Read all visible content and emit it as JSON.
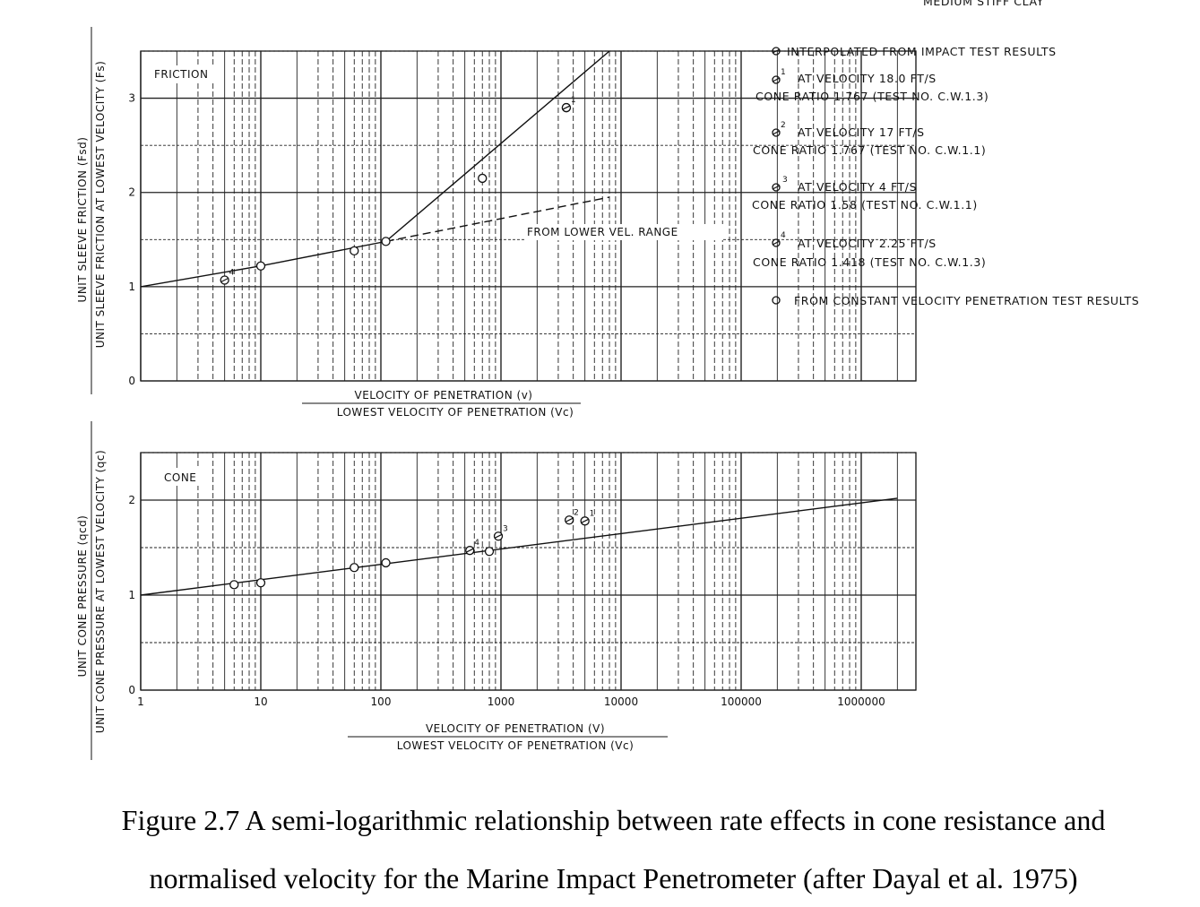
{
  "header_fragment": "MEDIUM STIFF CLAY",
  "chart_data": [
    {
      "type": "line",
      "panel": "friction",
      "panel_label": "FRICTION",
      "x_scale": "log",
      "xlim": [
        1,
        3000000
      ],
      "ylim": [
        0,
        3.5
      ],
      "y_ticks": [
        "0",
        "1",
        "2",
        "3"
      ],
      "ylabel_top": "UNIT SLEEVE FRICTION (Fsd)",
      "ylabel_bottom": "UNIT SLEEVE FRICTION AT LOWEST VELOCITY (Fs)",
      "xlabel_top": "VELOCITY OF PENETRATION (v)",
      "xlabel_bottom": "LOWEST VELOCITY OF PENETRATION (Vc)",
      "series": [
        {
          "style": "solid",
          "x": [
            1,
            10,
            110,
            8000
          ],
          "y": [
            1.0,
            1.22,
            1.48,
            3.5
          ]
        },
        {
          "style": "dashed",
          "x": [
            110,
            8000
          ],
          "y": [
            1.48,
            1.95
          ]
        }
      ],
      "points_constant_velocity": {
        "x": [
          10,
          60,
          110,
          700,
          3500
        ],
        "y": [
          1.22,
          1.38,
          1.48,
          2.15,
          2.9
        ]
      },
      "points_interpolated": [
        {
          "label": "4",
          "x": 5,
          "y": 1.07
        },
        {
          "label": "1",
          "x": 3500,
          "y": 2.9
        }
      ],
      "annotation": "FROM LOWER VEL. RANGE"
    },
    {
      "type": "line",
      "panel": "cone",
      "panel_label": "CONE",
      "x_scale": "log",
      "xlim": [
        1,
        3000000
      ],
      "ylim": [
        0,
        2.5
      ],
      "x_ticks": [
        "1",
        "10",
        "100",
        "1000",
        "10000",
        "100000",
        "1000000"
      ],
      "y_ticks": [
        "0",
        "1",
        "2"
      ],
      "ylabel_top": "UNIT CONE PRESSURE (qcd)",
      "ylabel_bottom": "UNIT CONE PRESSURE AT LOWEST VELOCITY (qc)",
      "xlabel_top": "VELOCITY OF PENETRATION (V)",
      "xlabel_bottom": "LOWEST VELOCITY OF PENETRATION (Vc)",
      "series": [
        {
          "style": "solid",
          "x": [
            1,
            2000000
          ],
          "y": [
            1.0,
            2.02
          ]
        }
      ],
      "points_constant_velocity": {
        "x": [
          6,
          10,
          60,
          110,
          800
        ],
        "y": [
          1.11,
          1.13,
          1.29,
          1.34,
          1.46
        ]
      },
      "points_interpolated": [
        {
          "label": "4",
          "x": 550,
          "y": 1.47
        },
        {
          "label": "3",
          "x": 950,
          "y": 1.62
        },
        {
          "label": "2",
          "x": 3700,
          "y": 1.79
        },
        {
          "label": "1",
          "x": 5000,
          "y": 1.78
        }
      ]
    }
  ],
  "legend": {
    "interpolated_title": "INTERPOLATED FROM IMPACT TEST RESULTS",
    "items": [
      {
        "marker": "1",
        "line1": "AT VELOCITY 18.0 FT/S",
        "line2": "CONE RATIO 1.767 (TEST NO. C.W.1.3)"
      },
      {
        "marker": "2",
        "line1": "AT VELOCITY 17 FT/S",
        "line2": "CONE RATIO 1.767 (TEST NO. C.W.1.1)"
      },
      {
        "marker": "3",
        "line1": "AT VELOCITY 4 FT/S",
        "line2": "CONE RATIO 1.58 (TEST NO. C.W.1.1)"
      },
      {
        "marker": "4",
        "line1": "AT VELOCITY 2.25 FT/S",
        "line2": "CONE RATIO 1.418 (TEST NO. C.W.1.3)"
      }
    ],
    "constant_title": "FROM CONSTANT VELOCITY PENETRATION TEST RESULTS"
  },
  "caption": {
    "line1": "Figure 2.7 A semi-logarithmic relationship between rate effects in cone resistance and",
    "line2": "normalised velocity for the Marine Impact Penetrometer (after Dayal et al. 1975)"
  }
}
